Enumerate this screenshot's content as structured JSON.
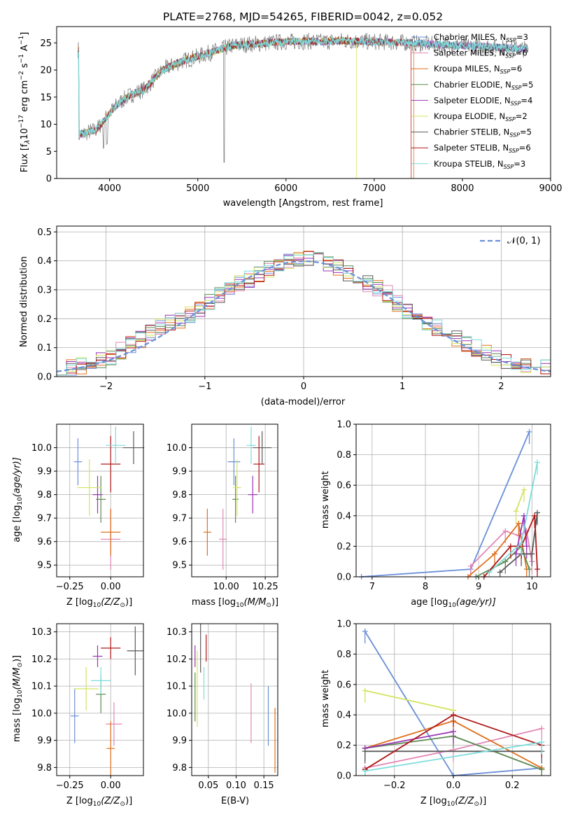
{
  "colors": [
    "#6a8fd8",
    "#e388b6",
    "#e0701c",
    "#5d8a52",
    "#9a34b5",
    "#d4e35f",
    "#5a5a5a",
    "#b01818",
    "#7ddcdc"
  ],
  "spectrum": {
    "title": "PLATE=2768, MJD=54265, FIBERID=0042, z=0.052",
    "xlabel": "wavelength [Angstrom, rest frame]",
    "ylabel_main": "Flux [f",
    "ylabel_lambda": "λ",
    "ylabel_mid": "10",
    "ylabel_exp1": "−17",
    "ylabel_units": " erg cm",
    "ylabel_exp2": "−2",
    "ylabel_s": " s",
    "ylabel_exp3": "−1",
    "ylabel_A": " A",
    "ylabel_exp4": "−1",
    "ylabel_end": "]",
    "xticks": [
      "4000",
      "5000",
      "6000",
      "7000",
      "8000",
      "9000"
    ],
    "yticks": [
      "0",
      "5",
      "10",
      "15",
      "20",
      "25"
    ],
    "legend": [
      {
        "name": "Chabrier MILES, N",
        "sub": "SSP",
        "val": "=3"
      },
      {
        "name": "Salpeter MILES, N",
        "sub": "SSP",
        "val": "=6"
      },
      {
        "name": "Kroupa MILES, N",
        "sub": "SSP",
        "val": "=6"
      },
      {
        "name": "Chabrier ELODIE, N",
        "sub": "SSP",
        "val": "=5"
      },
      {
        "name": "Salpeter ELODIE, N",
        "sub": "SSP",
        "val": "=4"
      },
      {
        "name": "Kroupa ELODIE, N",
        "sub": "SSP",
        "val": "=2"
      },
      {
        "name": "Chabrier STELIB, N",
        "sub": "SSP",
        "val": "=5"
      },
      {
        "name": "Salpeter STELIB, N",
        "sub": "SSP",
        "val": "=6"
      },
      {
        "name": "Kroupa STELIB, N",
        "sub": "SSP",
        "val": "=3"
      }
    ]
  },
  "histogram": {
    "xlabel": "(data-model)/error",
    "ylabel": "Normed distribution",
    "legend": "𝒩(0, 1)",
    "xticks": [
      "−2",
      "−1",
      "0",
      "1",
      "2"
    ],
    "yticks": [
      "0.0",
      "0.1",
      "0.2",
      "0.3",
      "0.4",
      "0.5"
    ]
  },
  "panels": {
    "age_vs_Z": {
      "xlabel": "Z [log",
      "xlabel_sub": "10",
      "xlabel_end": "(Z/Z",
      "xlabel_sun": "⊙",
      "xlabel_close": ")]",
      "ylabel": "age  [log",
      "ylabel_sub": "10",
      "ylabel_end": "(age/yr)]",
      "xticks": [
        "−0.25",
        "0.00"
      ],
      "yticks": [
        "9.5",
        "9.6",
        "9.7",
        "9.8",
        "9.9",
        "10.0"
      ]
    },
    "age_vs_mass": {
      "xlabel": "mass [log",
      "xlabel_sub": "10",
      "xlabel_end": "(M/M",
      "xlabel_sun": "⊙",
      "xlabel_close": ")]",
      "xticks": [
        "10.00",
        "10.25"
      ],
      "yticks": [
        "9.5",
        "9.6",
        "9.7",
        "9.8",
        "9.9",
        "10.0"
      ]
    },
    "weight_vs_age": {
      "xlabel": "age  [log",
      "xlabel_sub": "10",
      "xlabel_end": "(age/yr)]",
      "ylabel": "mass weight",
      "xticks": [
        "7",
        "8",
        "9",
        "10"
      ],
      "yticks": [
        "0.0",
        "0.2",
        "0.4",
        "0.6",
        "0.8",
        "1.0"
      ]
    },
    "mass_vs_Z": {
      "xlabel": "Z [log",
      "xlabel_sub": "10",
      "xlabel_end": "(Z/Z",
      "xlabel_sun": "⊙",
      "xlabel_close": ")]",
      "ylabel": "mass [log",
      "ylabel_sub": "10",
      "ylabel_end": "(M/M",
      "ylabel_sun": "⊙",
      "ylabel_close": ")]",
      "xticks": [
        "−0.25",
        "0.00"
      ],
      "yticks": [
        "9.8",
        "9.9",
        "10.0",
        "10.1",
        "10.2",
        "10.3"
      ]
    },
    "mass_vs_ebv": {
      "xlabel": "E(B-V)",
      "xticks": [
        "0.05",
        "0.10",
        "0.15"
      ],
      "yticks": [
        "9.8",
        "9.9",
        "10.0",
        "10.1",
        "10.2",
        "10.3"
      ]
    },
    "weight_vs_Z": {
      "xlabel": "Z [log",
      "xlabel_sub": "10",
      "xlabel_end": "(Z/Z",
      "xlabel_sun": "⊙",
      "xlabel_close": ")]",
      "ylabel": "mass weight",
      "xticks": [
        "−0.2",
        "0.0",
        "0.2"
      ],
      "yticks": [
        "0.0",
        "0.2",
        "0.4",
        "0.6",
        "0.8",
        "1.0"
      ]
    }
  },
  "chart_data": [
    {
      "type": "line",
      "title": "PLATE=2768, MJD=54265, FIBERID=0042, z=0.052",
      "xlabel": "wavelength [Angstrom, rest frame]",
      "xlim": [
        3400,
        9000
      ],
      "ylim": [
        0,
        28
      ],
      "series_names": [
        "Chabrier MILES",
        "Salpeter MILES",
        "Kroupa MILES",
        "Chabrier ELODIE",
        "Salpeter ELODIE",
        "Kroupa ELODIE",
        "Chabrier STELIB",
        "Salpeter STELIB",
        "Kroupa STELIB"
      ],
      "model_continuum": [
        [
          3650,
          8
        ],
        [
          3750,
          8.5
        ],
        [
          3850,
          9
        ],
        [
          3950,
          11
        ],
        [
          4050,
          13
        ],
        [
          4150,
          14.5
        ],
        [
          4250,
          15.5
        ],
        [
          4400,
          16.5
        ],
        [
          4600,
          20
        ],
        [
          4800,
          21.5
        ],
        [
          5000,
          22.5
        ],
        [
          5200,
          23.5
        ],
        [
          5400,
          24.5
        ],
        [
          5600,
          24.8
        ],
        [
          5800,
          25
        ],
        [
          6000,
          25.2
        ],
        [
          6200,
          25.3
        ],
        [
          6400,
          25.2
        ],
        [
          6600,
          25.4
        ],
        [
          6800,
          25.3
        ],
        [
          7000,
          25.2
        ],
        [
          7200,
          25.1
        ],
        [
          7400,
          25
        ],
        [
          7600,
          24.8
        ],
        [
          7800,
          24.6
        ],
        [
          8000,
          24.5
        ],
        [
          8200,
          24.4
        ],
        [
          8400,
          24.2
        ],
        [
          8600,
          24
        ],
        [
          8750,
          23.8
        ]
      ]
    },
    {
      "type": "bar",
      "xlabel": "(data-model)/error",
      "ylabel": "Normed distribution",
      "xlim": [
        -2.5,
        2.5
      ],
      "ylim": [
        0,
        0.52
      ],
      "bin_width": 0.1,
      "envelope": [
        [
          -2.5,
          0.02
        ],
        [
          -2.2,
          0.04
        ],
        [
          -2.0,
          0.06
        ],
        [
          -1.8,
          0.1
        ],
        [
          -1.6,
          0.14
        ],
        [
          -1.4,
          0.18
        ],
        [
          -1.2,
          0.2
        ],
        [
          -1.0,
          0.25
        ],
        [
          -0.8,
          0.29
        ],
        [
          -0.6,
          0.33
        ],
        [
          -0.4,
          0.36
        ],
        [
          -0.2,
          0.4
        ],
        [
          0.0,
          0.41
        ],
        [
          0.2,
          0.4
        ],
        [
          0.4,
          0.37
        ],
        [
          0.6,
          0.33
        ],
        [
          0.8,
          0.3
        ],
        [
          1.0,
          0.24
        ],
        [
          1.2,
          0.2
        ],
        [
          1.4,
          0.16
        ],
        [
          1.6,
          0.12
        ],
        [
          1.8,
          0.09
        ],
        [
          2.0,
          0.06
        ],
        [
          2.2,
          0.04
        ],
        [
          2.5,
          0.03
        ]
      ],
      "gaussian": "N(0,1)"
    },
    {
      "type": "scatter",
      "name": "age vs Z",
      "xlim": [
        -0.33,
        0.2
      ],
      "ylim": [
        9.45,
        10.1
      ],
      "points": [
        [
          -0.2,
          9.94,
          0.05,
          0.1
        ],
        [
          0.0,
          9.61,
          0.12,
          0.13
        ],
        [
          0.0,
          9.64,
          0.12,
          0.1
        ],
        [
          -0.06,
          9.78,
          0.06,
          0.1
        ],
        [
          -0.08,
          9.8,
          0.06,
          0.08
        ],
        [
          -0.13,
          9.83,
          0.15,
          0.12
        ],
        [
          0.14,
          10.0,
          0.13,
          0.07
        ],
        [
          0.0,
          9.93,
          0.12,
          0.12
        ],
        [
          0.03,
          10.01,
          0.12,
          0.08
        ]
      ]
    },
    {
      "type": "scatter",
      "name": "age vs mass",
      "xlim": [
        9.78,
        10.33
      ],
      "ylim": [
        9.45,
        10.1
      ],
      "points": [
        [
          10.05,
          9.94,
          0.08,
          0.1
        ],
        [
          9.98,
          9.61,
          0.05,
          0.13
        ],
        [
          9.88,
          9.64,
          0.05,
          0.1
        ],
        [
          10.06,
          9.78,
          0.04,
          0.1
        ],
        [
          10.17,
          9.8,
          0.06,
          0.08
        ],
        [
          10.07,
          9.83,
          0.05,
          0.12
        ],
        [
          10.23,
          10.0,
          0.12,
          0.07
        ],
        [
          10.21,
          9.93,
          0.07,
          0.12
        ],
        [
          10.16,
          10.01,
          0.06,
          0.08
        ]
      ]
    },
    {
      "type": "line",
      "name": "mass weight vs age",
      "xlim": [
        6.7,
        10.35
      ],
      "ylim": [
        0,
        1.0
      ],
      "series": [
        {
          "points": [
            [
              6.8,
              0.0
            ],
            [
              8.85,
              0.05
            ],
            [
              9.95,
              0.95
            ]
          ]
        },
        {
          "points": [
            [
              8.85,
              0.07
            ],
            [
              9.5,
              0.3
            ],
            [
              9.75,
              0.27
            ],
            [
              9.9,
              0.3
            ],
            [
              10.0,
              0.1
            ]
          ]
        },
        {
          "points": [
            [
              8.8,
              0.0
            ],
            [
              9.3,
              0.15
            ],
            [
              9.75,
              0.35
            ],
            [
              9.9,
              0.05
            ]
          ]
        },
        {
          "points": [
            [
              8.95,
              0.0
            ],
            [
              9.5,
              0.1
            ],
            [
              9.8,
              0.2
            ],
            [
              9.95,
              0.05
            ]
          ]
        },
        {
          "points": [
            [
              9.7,
              0.15
            ],
            [
              9.85,
              0.4
            ],
            [
              9.9,
              0.2
            ]
          ]
        },
        {
          "points": [
            [
              9.7,
              0.43
            ],
            [
              9.85,
              0.57
            ]
          ]
        },
        {
          "points": [
            [
              9.4,
              0.03
            ],
            [
              9.8,
              0.15
            ],
            [
              10.0,
              0.15
            ],
            [
              10.1,
              0.42
            ]
          ]
        },
        {
          "points": [
            [
              9.1,
              0.0
            ],
            [
              9.6,
              0.2
            ],
            [
              9.8,
              0.2
            ],
            [
              10.05,
              0.4
            ],
            [
              10.1,
              0.05
            ]
          ]
        },
        {
          "points": [
            [
              9.2,
              0.03
            ],
            [
              9.8,
              0.22
            ],
            [
              10.1,
              0.75
            ]
          ]
        }
      ]
    },
    {
      "type": "scatter",
      "name": "mass vs Z",
      "xlim": [
        -0.33,
        0.2
      ],
      "ylim": [
        9.77,
        10.33
      ],
      "points": [
        [
          -0.22,
          9.99,
          0.05,
          0.1
        ],
        [
          0.02,
          9.96,
          0.1,
          0.08
        ],
        [
          0.0,
          9.87,
          0.05,
          0.1
        ],
        [
          -0.06,
          10.07,
          0.06,
          0.07
        ],
        [
          -0.08,
          10.21,
          0.06,
          0.04
        ],
        [
          -0.15,
          10.09,
          0.15,
          0.08
        ],
        [
          0.15,
          10.23,
          0.1,
          0.09
        ],
        [
          0.0,
          10.24,
          0.12,
          0.04
        ],
        [
          -0.06,
          10.12,
          0.12,
          0.05
        ]
      ]
    },
    {
      "type": "scatter",
      "name": "mass vs E(B-V)",
      "xlim": [
        0.02,
        0.175
      ],
      "ylim": [
        9.77,
        10.33
      ],
      "points": [
        [
          0.158,
          9.99,
          0,
          0.11
        ],
        [
          0.127,
          10.0,
          0,
          0.11
        ],
        [
          0.17,
          9.9,
          0,
          0.12
        ],
        [
          0.026,
          10.06,
          0,
          0.09
        ],
        [
          0.026,
          10.21,
          0,
          0.04
        ],
        [
          0.03,
          10.09,
          0,
          0.14
        ],
        [
          0.036,
          10.24,
          0,
          0.09
        ],
        [
          0.046,
          10.24,
          0,
          0.05
        ],
        [
          0.042,
          10.11,
          0,
          0.06
        ]
      ]
    },
    {
      "type": "line",
      "name": "mass weight vs Z",
      "xlim": [
        -0.33,
        0.33
      ],
      "ylim": [
        0,
        1.0
      ],
      "series": [
        {
          "points": [
            [
              -0.3,
              0.95
            ],
            [
              0.0,
              0.0
            ],
            [
              0.3,
              0.05
            ]
          ]
        },
        {
          "points": [
            [
              -0.3,
              0.05
            ],
            [
              0.0,
              0.17
            ],
            [
              0.3,
              0.31
            ]
          ]
        },
        {
          "points": [
            [
              -0.3,
              0.18
            ],
            [
              0.0,
              0.36
            ],
            [
              0.3,
              0.05
            ]
          ]
        },
        {
          "points": [
            [
              -0.3,
              0.18
            ],
            [
              0.0,
              0.26
            ],
            [
              0.3,
              0.04
            ]
          ]
        },
        {
          "points": [
            [
              -0.3,
              0.18
            ],
            [
              0.0,
              0.29
            ]
          ]
        },
        {
          "points": [
            [
              -0.3,
              0.56
            ],
            [
              0.0,
              0.43
            ]
          ]
        },
        {
          "points": [
            [
              -0.3,
              0.16
            ],
            [
              0.3,
              0.16
            ]
          ]
        },
        {
          "points": [
            [
              -0.3,
              0.04
            ],
            [
              0.0,
              0.4
            ],
            [
              0.3,
              0.2
            ]
          ]
        },
        {
          "points": [
            [
              -0.3,
              0.03
            ],
            [
              0.3,
              0.22
            ]
          ]
        }
      ]
    }
  ]
}
